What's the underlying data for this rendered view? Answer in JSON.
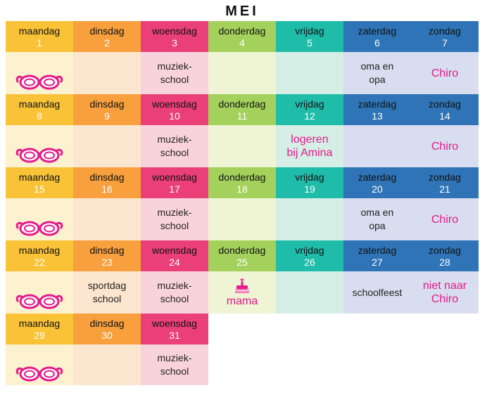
{
  "title": "MEI",
  "colors": {
    "accent_pink": "#e6198a",
    "header_colors": [
      "#f9c237",
      "#f7a03d",
      "#ea3f79",
      "#a4d15c",
      "#1fbcaa",
      "#2f74b6",
      "#2f74b6"
    ],
    "body_colors": [
      "#fdf2d0",
      "#fde6cf",
      "#f9d3dc",
      "#eef4d4",
      "#d5eee6",
      "#d8ddef",
      "#d8ddef"
    ]
  },
  "weeks": [
    {
      "days": [
        {
          "day": "maandag",
          "num": "1"
        },
        {
          "day": "dinsdag",
          "num": "2"
        },
        {
          "day": "woensdag",
          "num": "3"
        },
        {
          "day": "donderdag",
          "num": "4"
        },
        {
          "day": "vrijdag",
          "num": "5"
        },
        {
          "day": "zaterdag",
          "num": "6"
        },
        {
          "day": "zondag",
          "num": "7"
        }
      ],
      "events": [
        "",
        "",
        "muziek-\nschool",
        "",
        "",
        "oma en\nopa",
        "Chiro"
      ]
    },
    {
      "days": [
        {
          "day": "maandag",
          "num": "8"
        },
        {
          "day": "dinsdag",
          "num": "9"
        },
        {
          "day": "woensdag",
          "num": "10"
        },
        {
          "day": "donderdag",
          "num": "11"
        },
        {
          "day": "vrijdag",
          "num": "12"
        },
        {
          "day": "zaterdag",
          "num": "13"
        },
        {
          "day": "zondag",
          "num": "14"
        }
      ],
      "events": [
        "",
        "",
        "muziek-\nschool",
        "",
        "logeren\nbij Amina",
        "",
        "Chiro"
      ]
    },
    {
      "days": [
        {
          "day": "maandag",
          "num": "15"
        },
        {
          "day": "dinsdag",
          "num": "16"
        },
        {
          "day": "woensdag",
          "num": "17"
        },
        {
          "day": "donderdag",
          "num": "18"
        },
        {
          "day": "vrijdag",
          "num": "19"
        },
        {
          "day": "zaterdag",
          "num": "20"
        },
        {
          "day": "zondag",
          "num": "21"
        }
      ],
      "events": [
        "",
        "",
        "muziek-\nschool",
        "",
        "",
        "oma en\nopa",
        "Chiro"
      ]
    },
    {
      "days": [
        {
          "day": "maandag",
          "num": "22"
        },
        {
          "day": "dinsdag",
          "num": "23"
        },
        {
          "day": "woensdag",
          "num": "24"
        },
        {
          "day": "donderdag",
          "num": "25"
        },
        {
          "day": "vrijdag",
          "num": "26"
        },
        {
          "day": "zaterdag",
          "num": "27"
        },
        {
          "day": "zondag",
          "num": "28"
        }
      ],
      "events": [
        "",
        "sportdag\nschool",
        "muziek-\nschool",
        "mama",
        "",
        "schoolfeest",
        "niet naar\nChiro"
      ]
    },
    {
      "days": [
        {
          "day": "maandag",
          "num": "29"
        },
        {
          "day": "dinsdag",
          "num": "30"
        },
        {
          "day": "woensdag",
          "num": "31"
        }
      ],
      "events": [
        "",
        "",
        "muziek-\nschool"
      ]
    }
  ]
}
